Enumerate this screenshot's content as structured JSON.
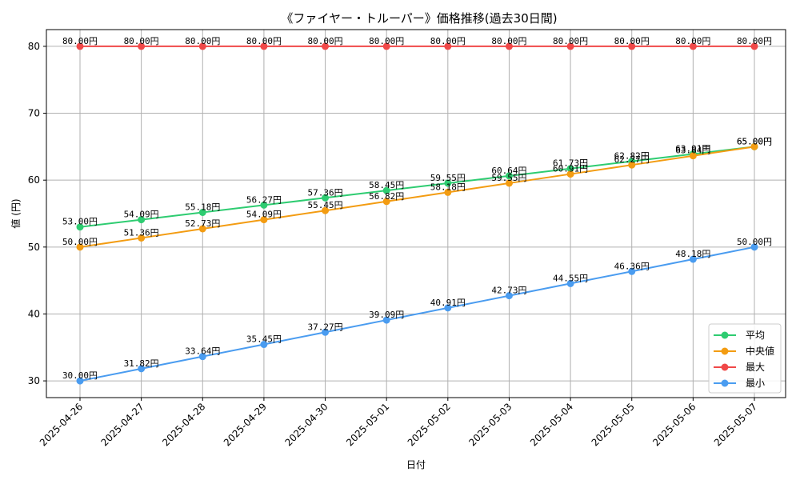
{
  "chart_data": {
    "type": "line",
    "title": "《ファイヤー・トルーパー》価格推移(過去30日間)",
    "xlabel": "日付",
    "ylabel": "値 (円)",
    "ylim": [
      27.5,
      82.5
    ],
    "yticks": [
      30,
      40,
      50,
      60,
      70,
      80
    ],
    "grid": true,
    "legend_position": "lower-right",
    "value_suffix": "円",
    "categories": [
      "2025-04-26",
      "2025-04-27",
      "2025-04-28",
      "2025-04-29",
      "2025-04-30",
      "2025-05-01",
      "2025-05-02",
      "2025-05-03",
      "2025-05-04",
      "2025-05-05",
      "2025-05-06",
      "2025-05-07"
    ],
    "series": [
      {
        "name": "平均",
        "color": "#2ecc71",
        "values": [
          53.0,
          54.09,
          55.18,
          56.27,
          57.36,
          58.45,
          59.55,
          60.64,
          61.73,
          62.82,
          63.91,
          65.0
        ]
      },
      {
        "name": "中央値",
        "color": "#f39c12",
        "values": [
          50.0,
          51.36,
          52.73,
          54.09,
          55.45,
          56.82,
          58.18,
          59.55,
          60.91,
          62.27,
          63.64,
          65.0
        ]
      },
      {
        "name": "最大",
        "color": "#f04848",
        "values": [
          80.0,
          80.0,
          80.0,
          80.0,
          80.0,
          80.0,
          80.0,
          80.0,
          80.0,
          80.0,
          80.0,
          80.0
        ]
      },
      {
        "name": "最小",
        "color": "#4a9cf0",
        "values": [
          30.0,
          31.82,
          33.64,
          35.45,
          37.27,
          39.09,
          40.91,
          42.73,
          44.55,
          46.36,
          48.18,
          50.0
        ]
      }
    ]
  }
}
